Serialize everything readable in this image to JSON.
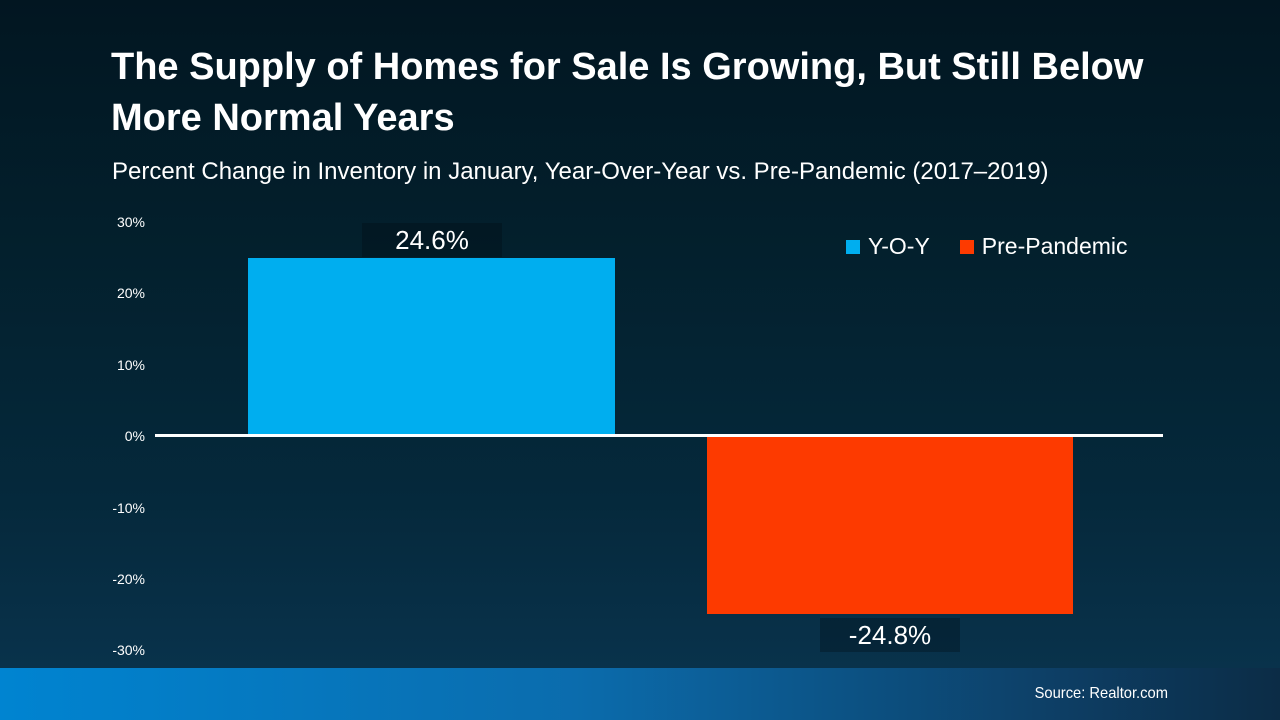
{
  "title": "The Supply of Homes for Sale Is Growing, But Still Below More Normal Years",
  "subtitle": "Percent Change in Inventory in January, Year-Over-Year vs. Pre-Pandemic (2017–2019)",
  "legend": [
    {
      "label": "Y-O-Y",
      "color": "#00aeef"
    },
    {
      "label": "Pre-Pandemic",
      "color": "#fd3a00"
    }
  ],
  "footer": {
    "source": "Source: Realtor.com"
  },
  "colors": {
    "background_top": "#021621",
    "background_bottom": "#0a3550",
    "yoy_bar": "#00aeef",
    "pre_pandemic_bar": "#fd3a00",
    "axis_line": "#ffffff",
    "footer_blue": "#0084d1",
    "text": "#ffffff"
  },
  "chart_data": {
    "type": "bar",
    "title": "Percent Change in Inventory in January, Year-Over-Year vs. Pre-Pandemic (2017–2019)",
    "series": [
      {
        "name": "Y-O-Y",
        "value": 24.6,
        "label": "24.6%",
        "color": "#00aeef"
      },
      {
        "name": "Pre-Pandemic",
        "value": -24.8,
        "label": "-24.8%",
        "color": "#fd3a00"
      }
    ],
    "y_ticks": [
      "30%",
      "20%",
      "10%",
      "0%",
      "-10%",
      "-20%",
      "-30%"
    ],
    "ylim": [
      -30,
      30
    ],
    "xlabel": "",
    "ylabel": "",
    "grid": false,
    "gridlines_visible": false,
    "zero_baseline_visible": true,
    "legend_position": "top-right"
  }
}
